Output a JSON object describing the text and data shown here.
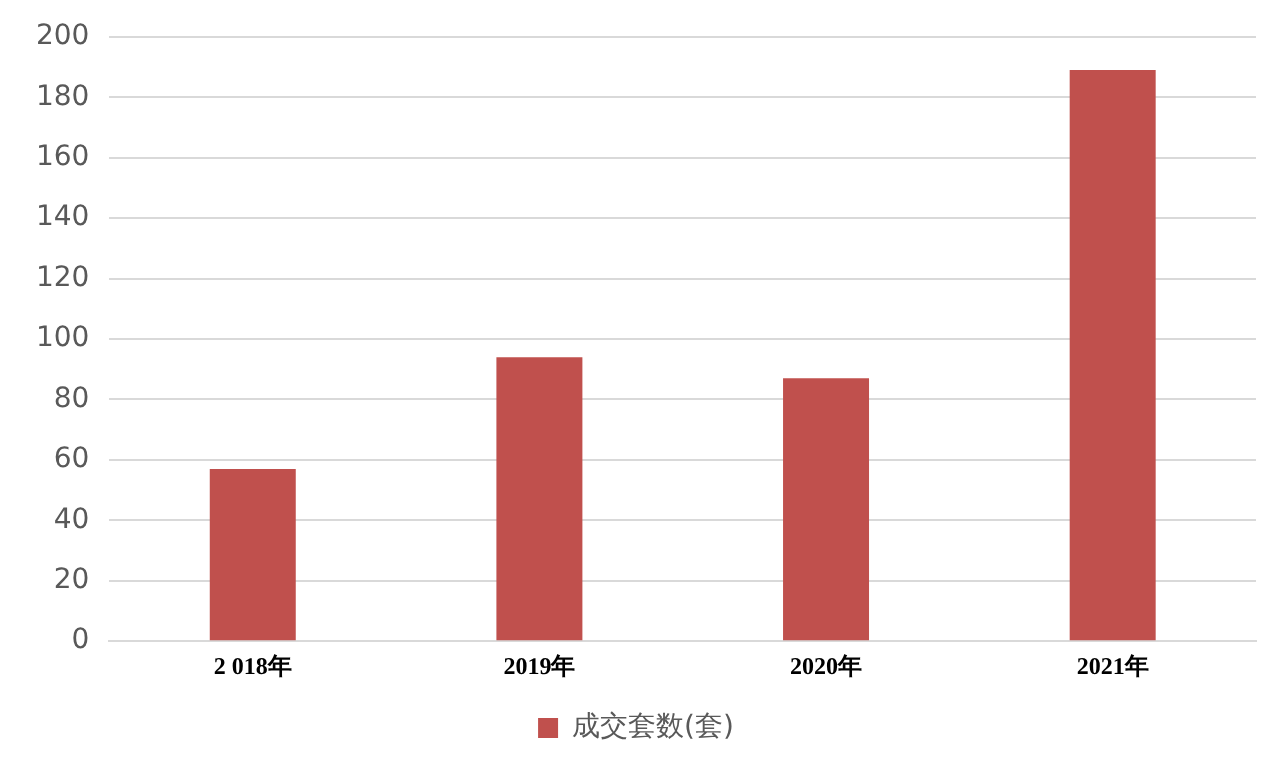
{
  "chart_data": {
    "type": "bar",
    "categories": [
      "2 018年",
      "2019年",
      "2020年",
      "2021年"
    ],
    "series": [
      {
        "name": "成交套数(套)",
        "color": "#c0504d",
        "values": [
          57,
          94,
          87,
          189
        ]
      }
    ],
    "ylim": [
      0,
      200
    ],
    "yticks": [
      0,
      20,
      40,
      60,
      80,
      100,
      120,
      140,
      160,
      180,
      200
    ],
    "grid": "y",
    "legend": "bottom"
  }
}
